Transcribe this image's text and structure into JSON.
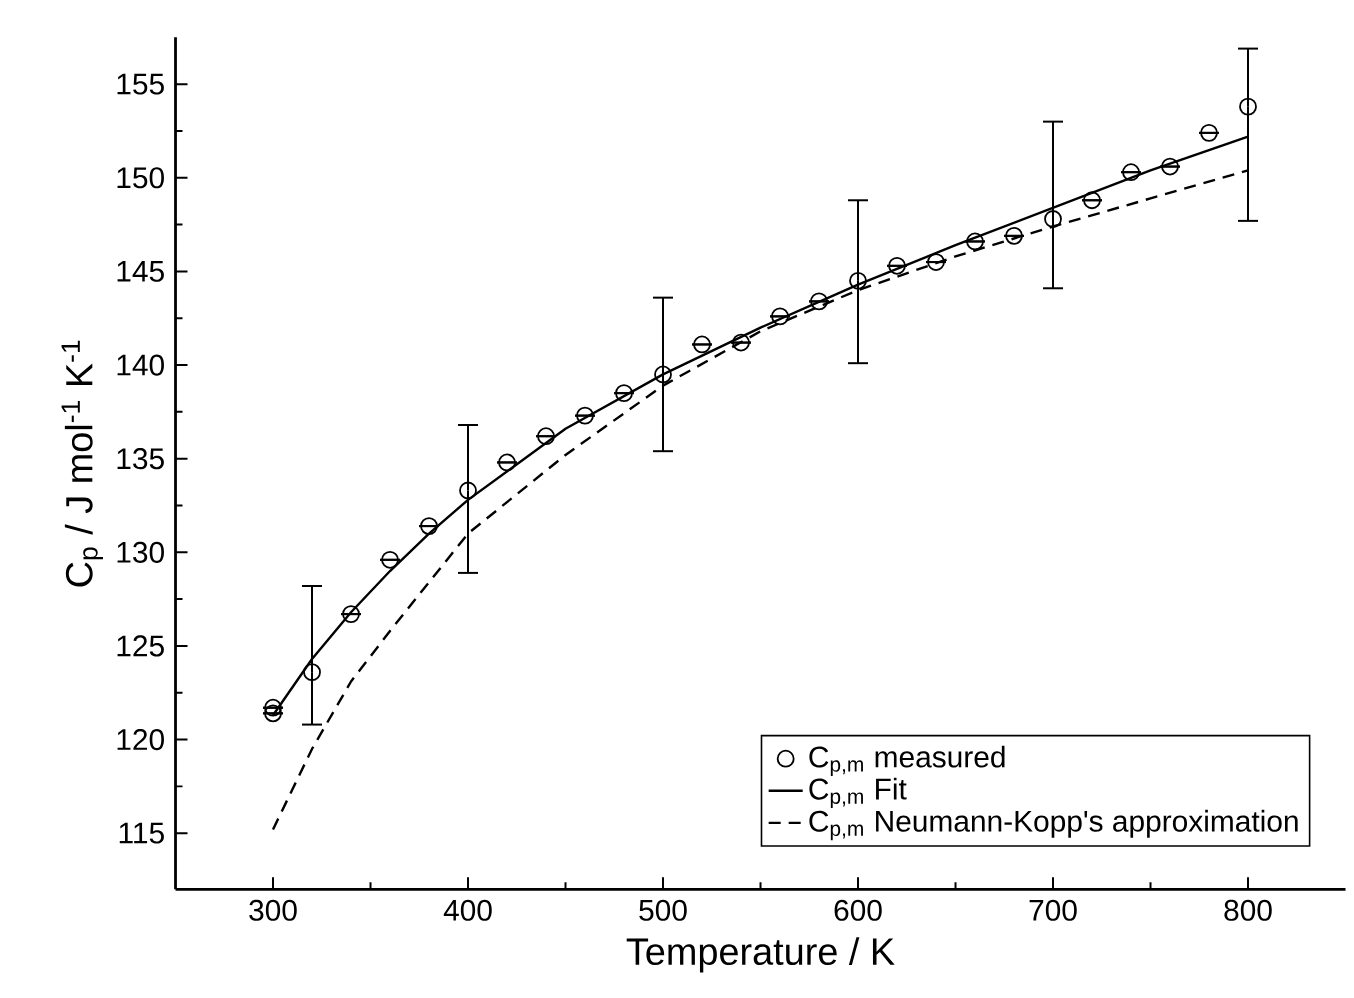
{
  "chart_data": {
    "type": "scatter",
    "xlabel": "Temperature / K",
    "ylabel": "C$_{p}$ / J mol$^{-1}$ K$^{-1}$",
    "xlim": [
      250,
      850
    ],
    "ylim": [
      112,
      157.5
    ],
    "xticks": [
      300,
      400,
      500,
      600,
      700,
      800
    ],
    "yticks": [
      115,
      120,
      125,
      130,
      135,
      140,
      145,
      150,
      155
    ],
    "grid": false,
    "legend": "bottom right",
    "series": [
      {
        "name": "C$_{p,m}$ measured",
        "marker": "circle",
        "color": "#000000",
        "x": [
          300,
          300,
          320,
          340,
          360,
          380,
          400,
          420,
          440,
          460,
          480,
          500,
          520,
          540,
          560,
          580,
          600,
          620,
          640,
          660,
          680,
          700,
          720,
          740,
          760,
          780,
          800
        ],
        "values": [
          121.4,
          121.7,
          123.6,
          126.7,
          129.6,
          131.4,
          133.3,
          134.8,
          136.2,
          137.3,
          138.5,
          139.5,
          141.1,
          141.2,
          142.6,
          143.4,
          144.5,
          145.3,
          145.5,
          146.6,
          146.9,
          147.8,
          148.8,
          150.3,
          150.6,
          152.4,
          153.8
        ],
        "errors": [
          null,
          null,
          [
            120.8,
            128.2
          ],
          null,
          null,
          null,
          [
            128.9,
            136.8
          ],
          null,
          null,
          null,
          null,
          [
            135.4,
            143.6
          ],
          null,
          null,
          null,
          null,
          [
            140.1,
            148.8
          ],
          null,
          null,
          null,
          null,
          [
            144.1,
            153.0
          ],
          null,
          null,
          null,
          null,
          [
            147.7,
            156.9
          ]
        ]
      },
      {
        "name": "C$_{p,m}$ Fit",
        "type": "line",
        "line_style": "solid",
        "color": "#000000",
        "x": [
          300,
          320,
          340,
          360,
          380,
          400,
          450,
          500,
          550,
          600,
          650,
          700,
          750,
          800
        ],
        "values": [
          121.3,
          124.3,
          126.8,
          129.0,
          131.0,
          132.8,
          136.6,
          139.5,
          142.0,
          144.3,
          146.4,
          148.4,
          150.4,
          152.2
        ]
      },
      {
        "name": "C$_{p,m}$ Neumann-Kopp's approximation",
        "type": "line",
        "line_style": "dashed",
        "color": "#000000",
        "x": [
          300,
          320,
          340,
          360,
          380,
          400,
          450,
          500,
          550,
          600,
          650,
          700,
          750,
          800
        ],
        "values": [
          115.2,
          119.5,
          123.1,
          125.8,
          128.4,
          131.0,
          135.2,
          138.9,
          141.8,
          144.0,
          145.8,
          147.4,
          148.9,
          150.4
        ]
      }
    ]
  }
}
